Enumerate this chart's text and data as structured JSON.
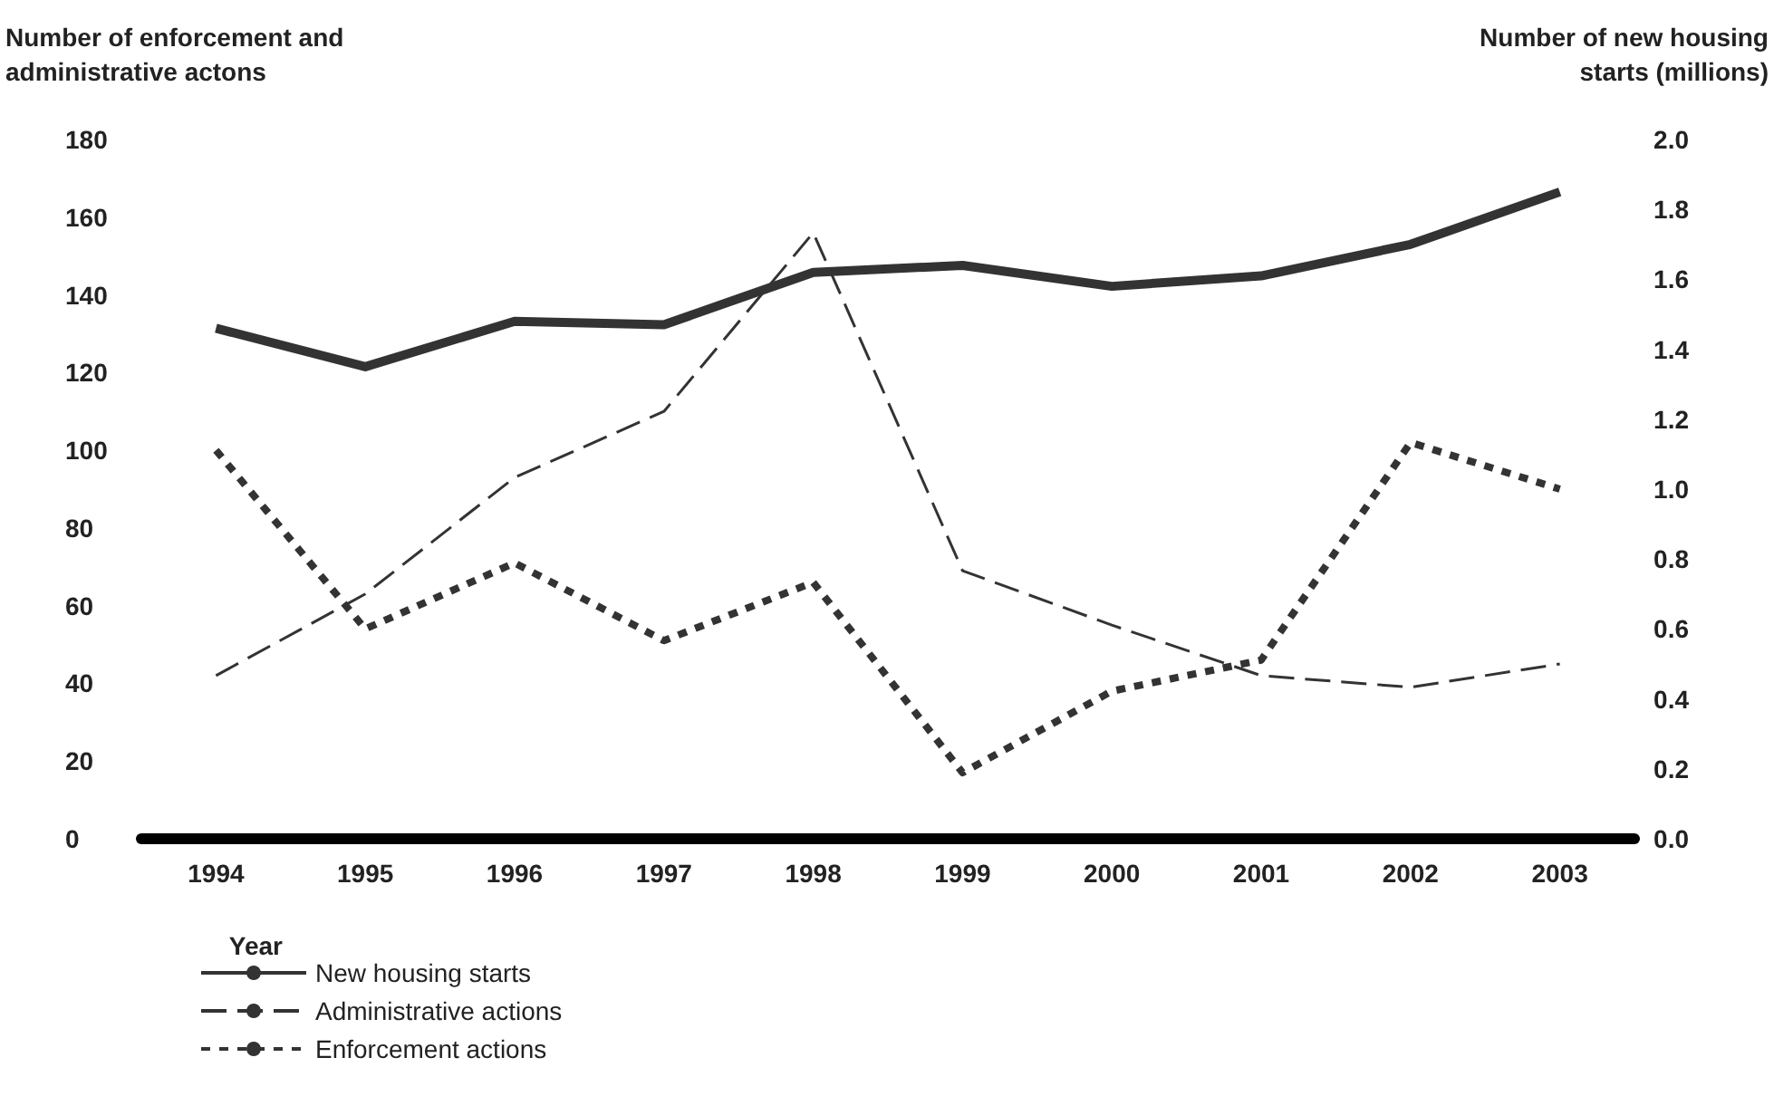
{
  "chart_data": {
    "type": "line",
    "xlabel": "Year",
    "ylabel": "Number of enforcement and administrative actons",
    "y2label": "Number of new housing starts (millions)",
    "categories": [
      "1994",
      "1995",
      "1996",
      "1997",
      "1998",
      "1999",
      "2000",
      "2001",
      "2002",
      "2003"
    ],
    "series": [
      {
        "name": "New housing starts",
        "color": "#333333",
        "axis": "y2",
        "line_style": "solid",
        "values": [
          1.46,
          1.35,
          1.48,
          1.47,
          1.62,
          1.64,
          1.58,
          1.61,
          1.7,
          1.85
        ]
      },
      {
        "name": "Administrative actions",
        "color": "#333333",
        "line_style": "dashed",
        "values": [
          42,
          63,
          93,
          110,
          156,
          69,
          55,
          42,
          39,
          45
        ]
      },
      {
        "name": "Enforcement actions",
        "color": "#333333",
        "line_style": "dotted",
        "values": [
          100,
          54,
          71,
          51,
          66,
          17,
          38,
          46,
          102,
          90
        ]
      }
    ],
    "ylim": [
      0,
      180
    ],
    "yticks": [
      0,
      20,
      40,
      60,
      80,
      100,
      120,
      140,
      160,
      180
    ],
    "y2lim": [
      0,
      2.0
    ],
    "y2ticks": [
      {
        "value": 0,
        "label": "0.0"
      },
      {
        "value": 0.2,
        "label": "0.2"
      },
      {
        "value": 0.4,
        "label": "0.4"
      },
      {
        "value": 0.6,
        "label": "0.6"
      },
      {
        "value": 0.8,
        "label": "0.8"
      },
      {
        "value": 1.0,
        "label": "1.0"
      },
      {
        "value": 1.2,
        "label": "1.2"
      },
      {
        "value": 1.4,
        "label": "1.4"
      },
      {
        "value": 1.6,
        "label": "1.6"
      },
      {
        "value": 1.8,
        "label": "1.8"
      },
      {
        "value": 2.0,
        "label": "2.0"
      }
    ],
    "grid": false,
    "legend": "bottom left",
    "marker": "none"
  }
}
